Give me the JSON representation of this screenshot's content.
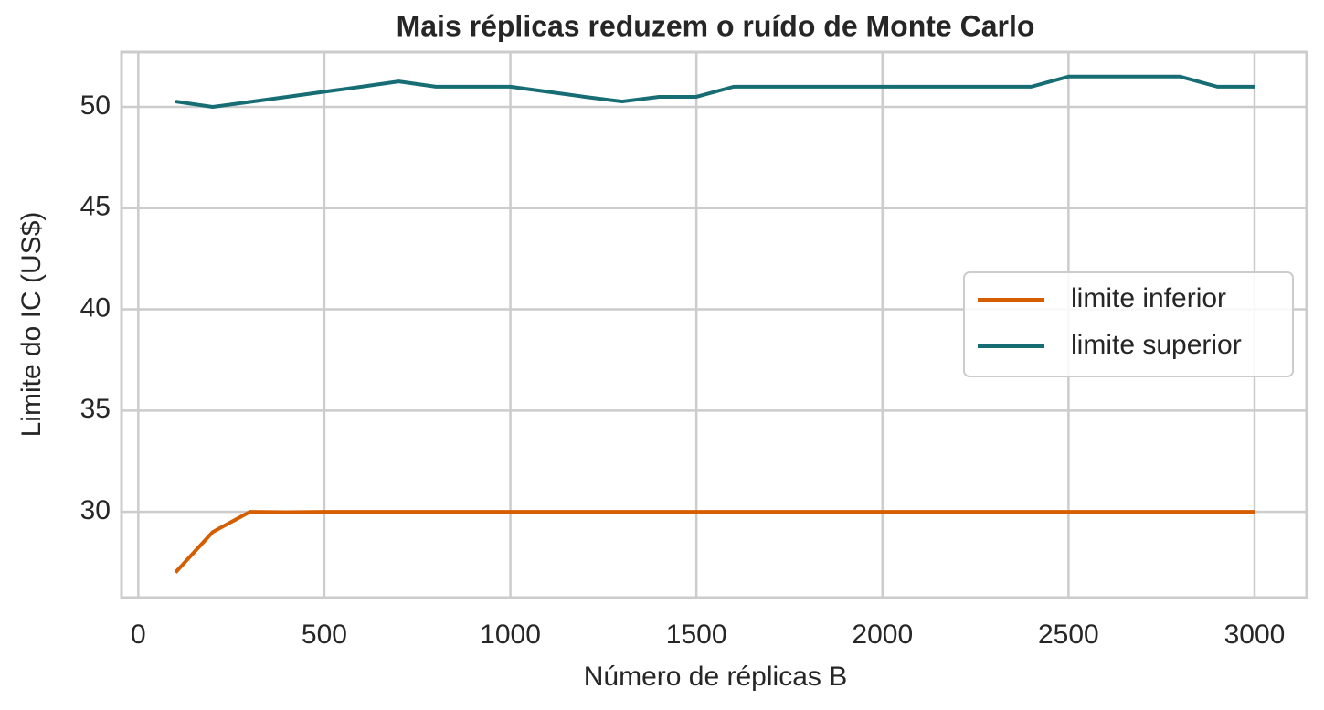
{
  "chart_data": {
    "type": "line",
    "title": "Mais réplicas reduzem o ruído de Monte Carlo",
    "x_label": "Número de réplicas B",
    "y_label": "Limite do IC (US$)",
    "x": [
      100,
      200,
      300,
      400,
      500,
      600,
      700,
      800,
      900,
      1000,
      1100,
      1200,
      1300,
      1400,
      1500,
      1600,
      1700,
      1800,
      1900,
      2000,
      2100,
      2200,
      2300,
      2400,
      2500,
      2600,
      2700,
      2800,
      2900,
      3000
    ],
    "series": [
      {
        "name": "limite inferior",
        "color": "#d55e00",
        "values": [
          27.0,
          29.0,
          30.0,
          29.98,
          30.0,
          30.0,
          30.0,
          30.0,
          30.0,
          30.0,
          30.0,
          30.0,
          30.0,
          30.0,
          30.0,
          30.0,
          30.0,
          30.0,
          30.0,
          30.0,
          30.0,
          30.0,
          30.0,
          30.0,
          30.0,
          30.0,
          30.0,
          30.0,
          30.0,
          30.0
        ]
      },
      {
        "name": "limite superior",
        "color": "#176d74",
        "values": [
          50.27,
          50.0,
          50.25,
          50.5,
          50.75,
          51.0,
          51.26,
          51.0,
          51.0,
          51.0,
          50.75,
          50.5,
          50.27,
          50.5,
          50.5,
          51.0,
          51.0,
          51.0,
          51.0,
          51.0,
          51.0,
          51.0,
          51.0,
          51.0,
          51.5,
          51.5,
          51.5,
          51.5,
          51.0,
          51.0
        ]
      }
    ],
    "xlim": [
      -45,
      3140
    ],
    "ylim": [
      25.76,
      52.71
    ],
    "xticks": [
      0,
      500,
      1000,
      1500,
      2000,
      2500,
      3000
    ],
    "yticks": [
      30,
      35,
      40,
      45,
      50
    ],
    "grid": true,
    "legend": "right"
  }
}
